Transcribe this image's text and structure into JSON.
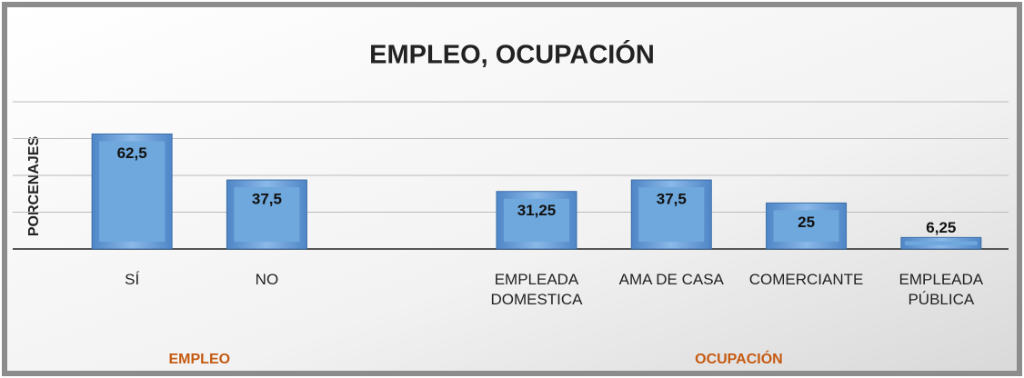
{
  "chart_data": {
    "type": "bar",
    "title": "EMPLEO, OCUPACIÓN",
    "y_label": "PORCENAJES",
    "categories": [
      "SÍ",
      "NO",
      null,
      "EMPLEADA DOMESTICA",
      "AMA DE CASA",
      "COMERCIANTE",
      "EMPLEADA PÚBLICA"
    ],
    "values": [
      62.5,
      37.5,
      null,
      31.25,
      37.5,
      25,
      6.25
    ],
    "value_labels": [
      "62,5",
      "37,5",
      null,
      "31,25",
      "37,5",
      "25",
      "6,25"
    ],
    "groups": [
      "EMPLEO",
      "OCUPACIÓN"
    ],
    "color": "#6fa8dc",
    "ylim": [
      0,
      80
    ],
    "yticks": [
      0,
      20,
      40,
      60,
      80
    ],
    "grid": true
  }
}
